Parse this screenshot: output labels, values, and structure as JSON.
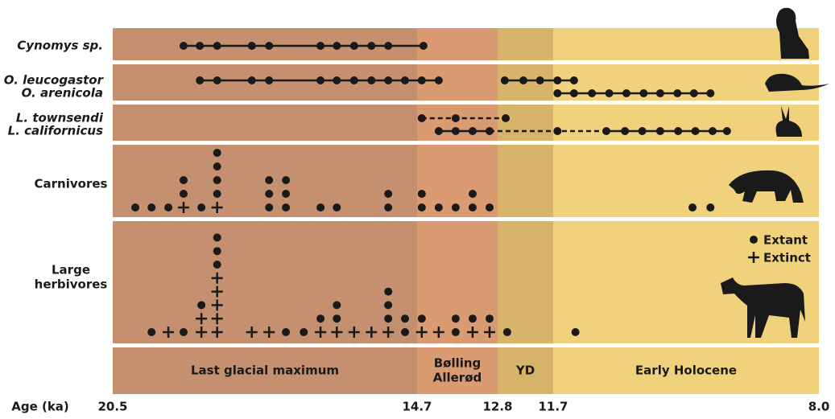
{
  "chart_data": {
    "type": "dot-timeline",
    "xlabel": "Age (ka)",
    "xlim": [
      20.5,
      8.0
    ],
    "xticks": [
      20.5,
      14.7,
      12.8,
      11.7,
      {
        "value": 8.0,
        "label": "8.0"
      }
    ],
    "marker_color": "#1a1a1a",
    "periods": [
      {
        "name_lines": [
          "Last glacial maximum"
        ],
        "start": 20.5,
        "end": 14.7,
        "color": "#c4906f"
      },
      {
        "name_lines": [
          "Bølling",
          "Allerød"
        ],
        "start": 14.7,
        "end": 12.8,
        "color": "#da9a72"
      },
      {
        "name_lines": [
          "YD"
        ],
        "start": 12.8,
        "end": 11.7,
        "color": "#d8b46b"
      },
      {
        "name_lines": [
          "Early Holocene"
        ],
        "start": 11.7,
        "end": 8.0,
        "color": "#f0d27c"
      }
    ],
    "taxa": [
      {
        "name": "Cynomys sp.",
        "dots": [
          19.15,
          18.84,
          18.51,
          17.85,
          17.52,
          16.54,
          16.23,
          15.9,
          15.57,
          15.25,
          14.55
        ],
        "lines": [
          {
            "from": 19.15,
            "to": 14.55,
            "style": "solid"
          }
        ]
      },
      {
        "name": "O. leucogastor",
        "dots": [
          18.84,
          18.51,
          17.85,
          17.52,
          16.54,
          16.23,
          15.9,
          15.57,
          15.25,
          14.93,
          14.59,
          14.19,
          12.66,
          12.29,
          11.96,
          11.64,
          11.41
        ],
        "lines": [
          {
            "from": 18.84,
            "to": 14.19,
            "style": "solid"
          },
          {
            "from": 12.66,
            "to": 11.41,
            "style": "solid"
          }
        ]
      },
      {
        "name": "O. arenicola",
        "dots": [
          11.64,
          11.41,
          11.16,
          10.92,
          10.68,
          10.44,
          10.21,
          9.97,
          9.74,
          9.51
        ],
        "lines": [
          {
            "from": 11.64,
            "to": 9.51,
            "style": "solid"
          }
        ]
      },
      {
        "name": "L. townsendi",
        "dots": [
          14.59,
          13.79,
          12.64
        ],
        "lines": [
          {
            "from": 14.59,
            "to": 12.64,
            "style": "dashed"
          }
        ]
      },
      {
        "name": "L. californicus",
        "dots": [
          14.19,
          13.79,
          13.39,
          12.99,
          11.64,
          10.96,
          10.7,
          10.46,
          10.21,
          9.96,
          9.72,
          9.48,
          9.28
        ],
        "lines": [
          {
            "from": 14.19,
            "to": 12.99,
            "style": "solid"
          },
          {
            "from": 12.99,
            "to": 10.96,
            "style": "dashed"
          },
          {
            "from": 10.96,
            "to": 9.28,
            "style": "solid"
          }
        ]
      }
    ],
    "groups": [
      {
        "name_lines": [
          "Carnivores"
        ],
        "points": [
          {
            "age": 20.07,
            "extant": 1,
            "extinct": 0
          },
          {
            "age": 19.76,
            "extant": 1,
            "extinct": 0
          },
          {
            "age": 19.44,
            "extant": 1,
            "extinct": 0
          },
          {
            "age": 19.15,
            "extant": 2,
            "extinct": 1
          },
          {
            "age": 18.81,
            "extant": 1,
            "extinct": 0
          },
          {
            "age": 18.51,
            "extant": 4,
            "extinct": 1
          },
          {
            "age": 17.52,
            "extant": 3,
            "extinct": 0
          },
          {
            "age": 17.2,
            "extant": 3,
            "extinct": 0
          },
          {
            "age": 16.54,
            "extant": 1,
            "extinct": 0
          },
          {
            "age": 16.23,
            "extant": 1,
            "extinct": 0
          },
          {
            "age": 15.25,
            "extant": 2,
            "extinct": 0
          },
          {
            "age": 14.59,
            "extant": 2,
            "extinct": 0
          },
          {
            "age": 14.19,
            "extant": 1,
            "extinct": 0
          },
          {
            "age": 13.79,
            "extant": 1,
            "extinct": 0
          },
          {
            "age": 13.39,
            "extant": 2,
            "extinct": 0
          },
          {
            "age": 12.99,
            "extant": 1,
            "extinct": 0
          },
          {
            "age": 9.76,
            "extant": 1,
            "extinct": 0
          },
          {
            "age": 9.51,
            "extant": 1,
            "extinct": 0
          }
        ]
      },
      {
        "name_lines": [
          "Large",
          "herbivores"
        ],
        "points": [
          {
            "age": 19.76,
            "extant": 1,
            "extinct": 0
          },
          {
            "age": 19.44,
            "extant": 0,
            "extinct": 1
          },
          {
            "age": 19.15,
            "extant": 1,
            "extinct": 0
          },
          {
            "age": 18.81,
            "extant": 1,
            "extinct": 2
          },
          {
            "age": 18.51,
            "extant": 3,
            "extinct": 5
          },
          {
            "age": 17.85,
            "extant": 0,
            "extinct": 1
          },
          {
            "age": 17.52,
            "extant": 0,
            "extinct": 1
          },
          {
            "age": 17.2,
            "extant": 1,
            "extinct": 0
          },
          {
            "age": 16.86,
            "extant": 1,
            "extinct": 0
          },
          {
            "age": 16.54,
            "extant": 1,
            "extinct": 1
          },
          {
            "age": 16.23,
            "extant": 2,
            "extinct": 1
          },
          {
            "age": 15.9,
            "extant": 0,
            "extinct": 1
          },
          {
            "age": 15.57,
            "extant": 0,
            "extinct": 1
          },
          {
            "age": 15.25,
            "extant": 3,
            "extinct": 1
          },
          {
            "age": 14.93,
            "extant": 2,
            "extinct": 0
          },
          {
            "age": 14.59,
            "extant": 1,
            "extinct": 1
          },
          {
            "age": 14.19,
            "extant": 0,
            "extinct": 1
          },
          {
            "age": 13.79,
            "extant": 2,
            "extinct": 0
          },
          {
            "age": 13.39,
            "extant": 1,
            "extinct": 1
          },
          {
            "age": 12.99,
            "extant": 1,
            "extinct": 1
          },
          {
            "age": 12.61,
            "extant": 1,
            "extinct": 0
          },
          {
            "age": 11.39,
            "extant": 1,
            "extinct": 0
          }
        ]
      }
    ],
    "legend": {
      "extant": "Extant",
      "extinct": "Extinct"
    }
  }
}
